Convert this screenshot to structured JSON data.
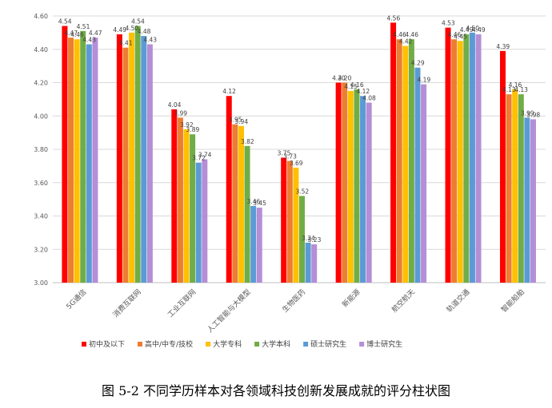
{
  "caption": "图 5-2 不同学历样本对各领域科技创新发展成就的评分柱状图",
  "chart_data": {
    "type": "bar",
    "title": "",
    "xlabel": "",
    "ylabel": "",
    "ylim": [
      3.0,
      4.6
    ],
    "yticks": [
      "3.00",
      "3.20",
      "3.40",
      "3.60",
      "3.80",
      "4.00",
      "4.20",
      "4.40",
      "4.60"
    ],
    "grid": true,
    "legend": "bottom",
    "categories": [
      "5G通信",
      "消费互联网",
      "工业互联网",
      "人工智能与大模型",
      "生物医药",
      "新能源",
      "航空航天",
      "轨道交通",
      "智能船舶"
    ],
    "series": [
      {
        "name": "初中及以下",
        "color": "#FF0000",
        "values": [
          4.54,
          4.49,
          4.04,
          4.12,
          3.75,
          4.2,
          4.56,
          4.53,
          4.39
        ],
        "labels": [
          "4.54",
          "4.49",
          "4.04",
          "4.12",
          "3.75",
          "4.20",
          "4.56",
          "4.53",
          "4.39"
        ]
      },
      {
        "name": "高中/中专/技校",
        "color": "#ED7D31",
        "values": [
          4.47,
          4.41,
          3.99,
          3.95,
          3.73,
          4.2,
          4.46,
          4.46,
          4.13
        ],
        "labels": [
          "4.47",
          "4.41",
          "3.99",
          "3.95",
          "3.73",
          "4.20",
          "4.46",
          "4.46",
          "4.13"
        ]
      },
      {
        "name": "大学专科",
        "color": "#FFC000",
        "values": [
          4.46,
          4.5,
          3.92,
          3.94,
          3.69,
          4.15,
          4.42,
          4.45,
          4.16
        ],
        "labels": [
          "4.46",
          "4.50",
          "3.92",
          "3.94",
          "3.69",
          "4.15",
          "4.42",
          "4.45",
          "4.16"
        ]
      },
      {
        "name": "大学本科",
        "color": "#70AD47",
        "values": [
          4.51,
          4.54,
          3.89,
          3.82,
          3.52,
          4.16,
          4.46,
          4.49,
          4.13
        ],
        "labels": [
          "4.51",
          "4.54",
          "3.89",
          "3.82",
          "3.52",
          "4.16",
          "4.46",
          "4.49",
          "4.13"
        ]
      },
      {
        "name": "硕士研究生",
        "color": "#5B9BD5",
        "values": [
          4.43,
          4.48,
          3.72,
          3.46,
          3.24,
          4.12,
          4.29,
          4.5,
          3.99
        ],
        "labels": [
          "4.43",
          "4.48",
          "3.72",
          "3.46",
          "3.24",
          "4.12",
          "4.29",
          "4.50",
          "3.99"
        ]
      },
      {
        "name": "博士研究生",
        "color": "#B48ED6",
        "values": [
          4.47,
          4.43,
          3.74,
          3.45,
          3.23,
          4.08,
          4.19,
          4.49,
          3.98
        ],
        "labels": [
          "4.47",
          "4.43",
          "3.74",
          "3.45",
          "3.23",
          "4.08",
          "4.19",
          "4.49",
          "3.98"
        ]
      }
    ]
  }
}
